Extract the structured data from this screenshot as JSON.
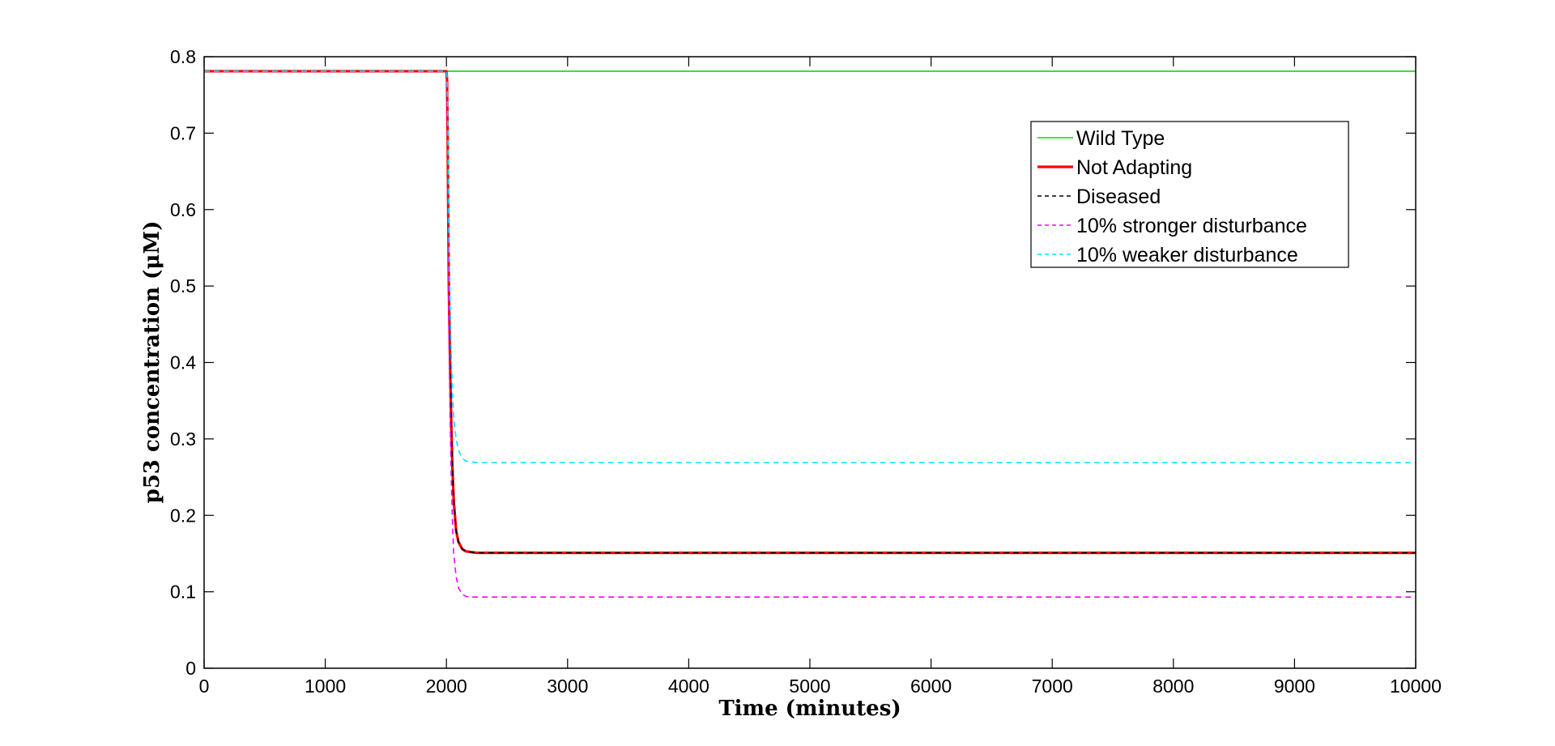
{
  "chart_data": {
    "type": "line",
    "title": "",
    "xlabel": "Time (minutes)",
    "ylabel": "p53 concentration (μM)",
    "xlim": [
      0,
      10000
    ],
    "ylim": [
      0,
      0.8
    ],
    "xticks": [
      0,
      1000,
      2000,
      3000,
      4000,
      5000,
      6000,
      7000,
      8000,
      9000,
      10000
    ],
    "yticks": [
      0,
      0.1,
      0.2,
      0.3,
      0.4,
      0.5,
      0.6,
      0.7,
      0.8
    ],
    "xtick_labels": [
      "0",
      "1000",
      "2000",
      "3000",
      "4000",
      "5000",
      "6000",
      "7000",
      "8000",
      "9000",
      "10000"
    ],
    "ytick_labels": [
      "0",
      "0.1",
      "0.2",
      "0.3",
      "0.4",
      "0.5",
      "0.6",
      "0.7",
      "0.8"
    ],
    "grid": false,
    "legend_position": "top-right",
    "series": [
      {
        "name": "Wild Type",
        "color": "#00e000",
        "style": "solid",
        "x": [
          0,
          10000
        ],
        "y": [
          0.781,
          0.781
        ]
      },
      {
        "name": "Not Adapting",
        "color": "#ff0000",
        "style": "solid-thick",
        "x": [
          0,
          2000,
          2005,
          2010,
          2015,
          2020,
          2030,
          2040,
          2050,
          2060,
          2080,
          2100,
          2130,
          2160,
          2200,
          2250,
          2300,
          10000
        ],
        "y": [
          0.781,
          0.781,
          0.77,
          0.7,
          0.6,
          0.5,
          0.4,
          0.32,
          0.26,
          0.22,
          0.18,
          0.165,
          0.156,
          0.153,
          0.152,
          0.151,
          0.151,
          0.151
        ]
      },
      {
        "name": "Diseased",
        "color": "#000000",
        "style": "dashed",
        "x": [
          0,
          2000,
          2005,
          2010,
          2015,
          2020,
          2030,
          2040,
          2050,
          2060,
          2080,
          2100,
          2130,
          2160,
          2200,
          2250,
          2300,
          10000
        ],
        "y": [
          0.781,
          0.781,
          0.77,
          0.7,
          0.6,
          0.5,
          0.4,
          0.32,
          0.26,
          0.22,
          0.18,
          0.165,
          0.156,
          0.153,
          0.152,
          0.151,
          0.151,
          0.151
        ]
      },
      {
        "name": "10% stronger disturbance",
        "color": "#ff00ff",
        "style": "dashed",
        "x": [
          0,
          2000,
          2005,
          2010,
          2015,
          2020,
          2030,
          2040,
          2050,
          2060,
          2080,
          2100,
          2130,
          2160,
          2200,
          2250,
          2300,
          10000
        ],
        "y": [
          0.781,
          0.781,
          0.76,
          0.68,
          0.56,
          0.45,
          0.33,
          0.25,
          0.19,
          0.15,
          0.12,
          0.105,
          0.097,
          0.094,
          0.093,
          0.093,
          0.093,
          0.093
        ]
      },
      {
        "name": "10% weaker disturbance",
        "color": "#00e5ff",
        "style": "dashed",
        "x": [
          0,
          2000,
          2005,
          2010,
          2015,
          2020,
          2030,
          2040,
          2050,
          2060,
          2080,
          2100,
          2130,
          2160,
          2200,
          2250,
          2300,
          10000
        ],
        "y": [
          0.781,
          0.781,
          0.775,
          0.74,
          0.67,
          0.58,
          0.48,
          0.41,
          0.36,
          0.33,
          0.3,
          0.285,
          0.275,
          0.271,
          0.27,
          0.269,
          0.269,
          0.269
        ]
      }
    ]
  }
}
